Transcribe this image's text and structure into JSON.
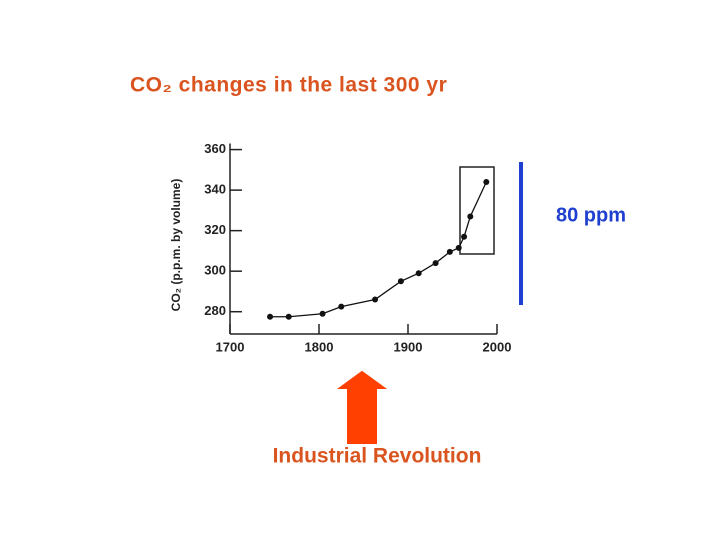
{
  "chart_data": {
    "type": "line",
    "title": "CO₂  changes in the last 300 yr",
    "y_label": "CO₂ (p.p.m. by volume)",
    "x": [
      1745,
      1766,
      1804,
      1825,
      1863,
      1892,
      1912,
      1931,
      1947,
      1957,
      1963,
      1970,
      1988
    ],
    "values": [
      277.5,
      277.5,
      279,
      282.5,
      286,
      295,
      299,
      304,
      309.5,
      311.5,
      317,
      327,
      344
    ],
    "color": "#111111",
    "xlim": [
      1700,
      2000
    ],
    "xticks": [
      1700,
      1800,
      1900,
      2000
    ],
    "ylim": [
      269,
      363
    ],
    "yticks": [
      280,
      300,
      320,
      340,
      360
    ],
    "annotations": [
      "80 ppm",
      "Industrial Revolution"
    ]
  }
}
